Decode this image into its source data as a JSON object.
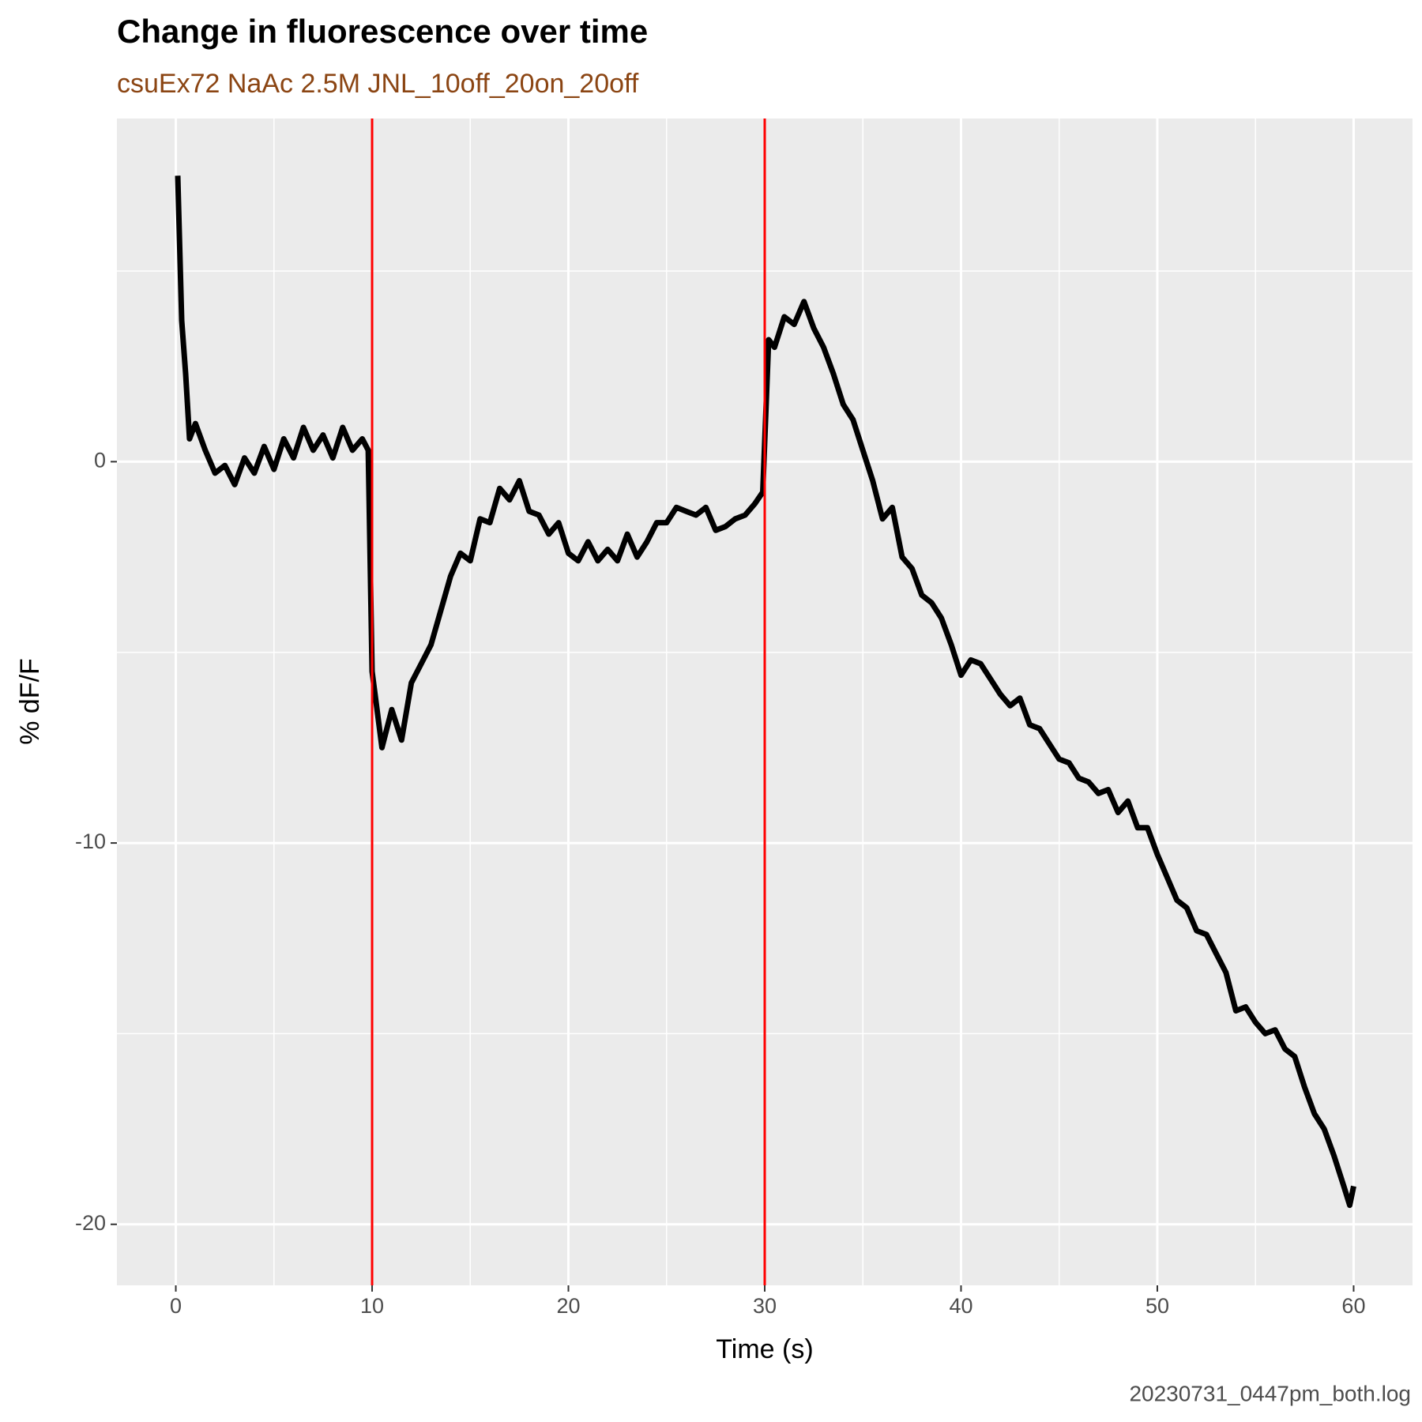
{
  "chart_data": {
    "type": "line",
    "title": "Change in fluorescence over time",
    "subtitle": "csuEx72 NaAc 2.5M JNL_10off_20on_20off",
    "xlabel": "Time (s)",
    "ylabel": "% dF/F",
    "caption": "20230731_0447pm_both.log",
    "x": [
      0.1,
      0.3,
      0.5,
      0.7,
      1,
      1.5,
      2,
      2.5,
      3,
      3.5,
      4,
      4.5,
      5,
      5.5,
      6,
      6.5,
      7,
      7.5,
      8,
      8.5,
      9,
      9.5,
      9.8,
      10,
      10.5,
      11,
      11.5,
      12,
      12.5,
      13,
      13.5,
      14,
      14.5,
      15,
      15.5,
      16,
      16.5,
      17,
      17.5,
      18,
      18.5,
      19,
      19.5,
      20,
      20.5,
      21,
      21.5,
      22,
      22.5,
      23,
      23.5,
      24,
      24.5,
      25,
      25.5,
      26,
      26.5,
      27,
      27.5,
      28,
      28.5,
      29,
      29.5,
      29.9,
      30.2,
      30.5,
      31,
      31.5,
      32,
      32.5,
      33,
      33.5,
      34,
      34.5,
      35,
      35.5,
      36,
      36.5,
      37,
      37.5,
      38,
      38.5,
      39,
      39.5,
      40,
      40.5,
      41,
      41.5,
      42,
      42.5,
      43,
      43.5,
      44,
      44.5,
      45,
      45.5,
      46,
      46.5,
      47,
      47.5,
      48,
      48.5,
      49,
      49.5,
      50,
      50.5,
      51,
      51.5,
      52,
      52.5,
      53,
      53.5,
      54,
      54.5,
      55,
      55.5,
      56,
      56.5,
      57,
      57.5,
      58,
      58.5,
      59,
      59.5,
      59.8,
      60
    ],
    "values": [
      7.5,
      3.7,
      2.3,
      0.6,
      1.0,
      0.3,
      -0.3,
      -0.1,
      -0.6,
      0.1,
      -0.3,
      0.4,
      -0.2,
      0.6,
      0.1,
      0.9,
      0.3,
      0.7,
      0.1,
      0.9,
      0.3,
      0.6,
      0.3,
      -5.5,
      -7.5,
      -6.5,
      -7.3,
      -5.8,
      -5.3,
      -4.8,
      -3.9,
      -3.0,
      -2.4,
      -2.6,
      -1.5,
      -1.6,
      -0.7,
      -1.0,
      -0.5,
      -1.3,
      -1.4,
      -1.9,
      -1.6,
      -2.4,
      -2.6,
      -2.1,
      -2.6,
      -2.3,
      -2.6,
      -1.9,
      -2.5,
      -2.1,
      -1.6,
      -1.6,
      -1.2,
      -1.3,
      -1.4,
      -1.2,
      -1.8,
      -1.7,
      -1.5,
      -1.4,
      -1.1,
      -0.8,
      3.2,
      3.0,
      3.8,
      3.6,
      4.2,
      3.5,
      3.0,
      2.3,
      1.5,
      1.1,
      0.3,
      -0.5,
      -1.5,
      -1.2,
      -2.5,
      -2.8,
      -3.5,
      -3.7,
      -4.1,
      -4.8,
      -5.6,
      -5.2,
      -5.3,
      -5.7,
      -6.1,
      -6.4,
      -6.2,
      -6.9,
      -7.0,
      -7.4,
      -7.8,
      -7.9,
      -8.3,
      -8.4,
      -8.7,
      -8.6,
      -9.2,
      -8.9,
      -9.6,
      -9.6,
      -10.3,
      -10.9,
      -11.5,
      -11.7,
      -12.3,
      -12.4,
      -12.9,
      -13.4,
      -14.4,
      -14.3,
      -14.7,
      -15.0,
      -14.9,
      -15.4,
      -15.6,
      -16.4,
      -17.1,
      -17.5,
      -18.2,
      -19.0,
      -19.5,
      -19.0
    ],
    "color": "#000000",
    "vlines": [
      10,
      30
    ],
    "vline_color": "#ff0000",
    "xlim": [
      -3,
      63
    ],
    "ylim": [
      -21.6,
      9.0
    ],
    "xticks": [
      0,
      10,
      20,
      30,
      40,
      50,
      60
    ],
    "yticks": [
      -20,
      -10,
      0
    ],
    "xminor": [
      5,
      15,
      25,
      35,
      45,
      55
    ],
    "yminor": [
      -15,
      -5,
      5
    ],
    "grid": true
  }
}
